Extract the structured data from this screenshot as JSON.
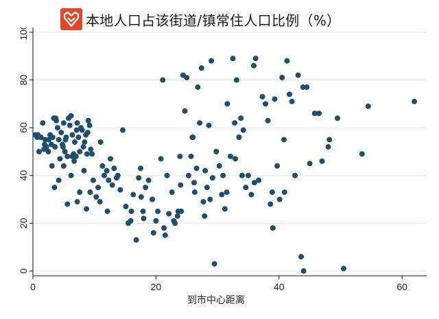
{
  "title": "本地人口占该街道/镇常住人口比例（%）",
  "logo_name": "brand-logo",
  "colors": {
    "logo_bg": "#e0472d",
    "point": "#1f4e6e",
    "grid": "#dfe6ea",
    "axis": "#111111"
  },
  "chart_data": {
    "type": "scatter",
    "title": "本地人口占该街道/镇常住人口比例（%）",
    "xlabel": "到市中心距离",
    "ylabel": "",
    "xlim": [
      0,
      64
    ],
    "ylim": [
      -2,
      102
    ],
    "xticks": [
      0,
      20,
      40,
      60
    ],
    "yticks": [
      0,
      20,
      40,
      60,
      80,
      100
    ],
    "grid": "horizontal",
    "series": [
      {
        "points": [
          [
            0.4,
            57
          ],
          [
            0.7,
            56
          ],
          [
            1.0,
            50
          ],
          [
            1.3,
            56
          ],
          [
            1.6,
            62
          ],
          [
            1.8,
            51
          ],
          [
            2.0,
            55
          ],
          [
            2.2,
            52
          ],
          [
            2.5,
            50
          ],
          [
            2.8,
            57
          ],
          [
            3.0,
            53
          ],
          [
            3.2,
            56
          ],
          [
            3.4,
            64
          ],
          [
            3.6,
            52
          ],
          [
            3.8,
            63
          ],
          [
            4.0,
            60
          ],
          [
            4.2,
            55
          ],
          [
            4.4,
            47
          ],
          [
            4.6,
            58
          ],
          [
            4.8,
            53
          ],
          [
            5.0,
            62
          ],
          [
            5.2,
            50
          ],
          [
            5.4,
            56
          ],
          [
            5.6,
            48
          ],
          [
            5.8,
            64
          ],
          [
            6.0,
            61
          ],
          [
            6.2,
            65
          ],
          [
            6.4,
            57
          ],
          [
            6.6,
            49
          ],
          [
            6.8,
            54
          ],
          [
            7.0,
            48
          ],
          [
            7.2,
            62
          ],
          [
            7.4,
            56
          ],
          [
            7.6,
            50
          ],
          [
            7.8,
            60
          ],
          [
            8.0,
            59
          ],
          [
            8.2,
            52
          ],
          [
            8.4,
            54
          ],
          [
            8.6,
            57
          ],
          [
            8.8,
            49
          ],
          [
            9.0,
            63
          ],
          [
            9.2,
            61
          ],
          [
            9.4,
            51
          ],
          [
            3.1,
            44
          ],
          [
            3.5,
            35
          ],
          [
            4.2,
            38
          ],
          [
            5.0,
            44
          ],
          [
            5.6,
            28
          ],
          [
            6.2,
            40
          ],
          [
            6.7,
            46
          ],
          [
            7.2,
            29
          ],
          [
            7.6,
            33
          ],
          [
            8.3,
            42
          ],
          [
            8.7,
            26
          ],
          [
            9.3,
            33
          ],
          [
            9.8,
            38
          ],
          [
            10.3,
            31
          ],
          [
            10.6,
            35
          ],
          [
            11.0,
            54
          ],
          [
            11.3,
            44
          ],
          [
            11.6,
            40
          ],
          [
            12.0,
            42
          ],
          [
            12.3,
            38
          ],
          [
            12.6,
            47
          ],
          [
            12.9,
            36
          ],
          [
            13.2,
            43
          ],
          [
            13.6,
            39
          ],
          [
            14.2,
            34
          ],
          [
            14.6,
            59
          ],
          [
            15.1,
            27
          ],
          [
            15.5,
            20
          ],
          [
            15.9,
            21
          ],
          [
            16.3,
            32
          ],
          [
            16.8,
            13
          ],
          [
            17.2,
            39
          ],
          [
            17.6,
            31
          ],
          [
            17.9,
            25
          ],
          [
            18.3,
            35
          ],
          [
            18.8,
            38
          ],
          [
            19.4,
            30
          ],
          [
            20.0,
            21
          ],
          [
            20.3,
            25
          ],
          [
            20.8,
            47
          ],
          [
            21.1,
            80
          ],
          [
            21.5,
            15
          ],
          [
            21.8,
            40
          ],
          [
            22.1,
            24
          ],
          [
            22.6,
            33
          ],
          [
            23.1,
            20
          ],
          [
            23.6,
            25
          ],
          [
            23.9,
            48
          ],
          [
            24.1,
            25
          ],
          [
            24.4,
            82
          ],
          [
            24.7,
            67
          ],
          [
            25.0,
            81
          ],
          [
            25.3,
            40
          ],
          [
            25.7,
            48
          ],
          [
            26.0,
            56
          ],
          [
            26.3,
            33
          ],
          [
            26.6,
            43
          ],
          [
            26.8,
            77
          ],
          [
            27.1,
            62
          ],
          [
            27.4,
            85
          ],
          [
            27.7,
            29
          ],
          [
            28.0,
            42
          ],
          [
            28.3,
            35
          ],
          [
            28.6,
            61
          ],
          [
            29.0,
            88
          ],
          [
            29.2,
            39
          ],
          [
            29.5,
            3
          ],
          [
            29.8,
            50
          ],
          [
            30.3,
            44
          ],
          [
            30.7,
            32
          ],
          [
            31.2,
            26
          ],
          [
            31.6,
            70
          ],
          [
            32.1,
            48
          ],
          [
            32.5,
            89
          ],
          [
            32.8,
            62
          ],
          [
            33.1,
            80
          ],
          [
            33.5,
            56
          ],
          [
            33.8,
            64
          ],
          [
            34.2,
            59
          ],
          [
            34.6,
            35
          ],
          [
            35.0,
            40
          ],
          [
            35.5,
            32
          ],
          [
            35.9,
            86
          ],
          [
            36.2,
            89
          ],
          [
            36.7,
            38
          ],
          [
            37.3,
            73
          ],
          [
            37.8,
            70
          ],
          [
            38.2,
            63
          ],
          [
            38.6,
            28
          ],
          [
            39.0,
            18
          ],
          [
            39.3,
            72
          ],
          [
            39.7,
            44
          ],
          [
            40.1,
            30
          ],
          [
            40.5,
            81
          ],
          [
            40.9,
            33
          ],
          [
            41.3,
            88
          ],
          [
            41.7,
            74
          ],
          [
            42.1,
            71
          ],
          [
            42.6,
            40
          ],
          [
            43.1,
            82
          ],
          [
            43.6,
            6
          ],
          [
            44.0,
            0
          ],
          [
            44.5,
            77
          ],
          [
            45.0,
            45
          ],
          [
            46.5,
            66
          ],
          [
            47.0,
            46
          ],
          [
            48.0,
            52
          ],
          [
            49.5,
            64
          ],
          [
            50.5,
            1
          ],
          [
            53.5,
            49
          ],
          [
            54.5,
            69
          ],
          [
            62.0,
            71
          ],
          [
            0.8,
            57
          ],
          [
            2.6,
            55
          ],
          [
            3.7,
            64
          ],
          [
            5.3,
            55
          ],
          [
            7.1,
            59
          ],
          [
            8.9,
            58
          ],
          [
            6.4,
            48
          ],
          [
            4.9,
            52
          ],
          [
            9.6,
            49
          ],
          [
            1.9,
            53
          ],
          [
            10.9,
            29
          ],
          [
            12.1,
            25
          ],
          [
            13.8,
            40
          ],
          [
            16.0,
            25
          ],
          [
            17.5,
            43
          ],
          [
            18.0,
            22
          ],
          [
            19.6,
            16
          ],
          [
            21.3,
            18
          ],
          [
            22.9,
            21
          ],
          [
            24.0,
            36
          ],
          [
            25.9,
            56
          ],
          [
            27.9,
            23
          ],
          [
            30.9,
            40
          ],
          [
            32.9,
            47
          ],
          [
            34.0,
            40
          ],
          [
            36.0,
            37
          ],
          [
            38.9,
            33
          ],
          [
            40.8,
            55
          ],
          [
            43.9,
            77
          ],
          [
            45.8,
            66
          ],
          [
            48.2,
            55
          ],
          [
            23.5,
            23
          ],
          [
            26.2,
            37
          ],
          [
            28.8,
            30
          ],
          [
            31.5,
            33
          ]
        ]
      }
    ]
  }
}
